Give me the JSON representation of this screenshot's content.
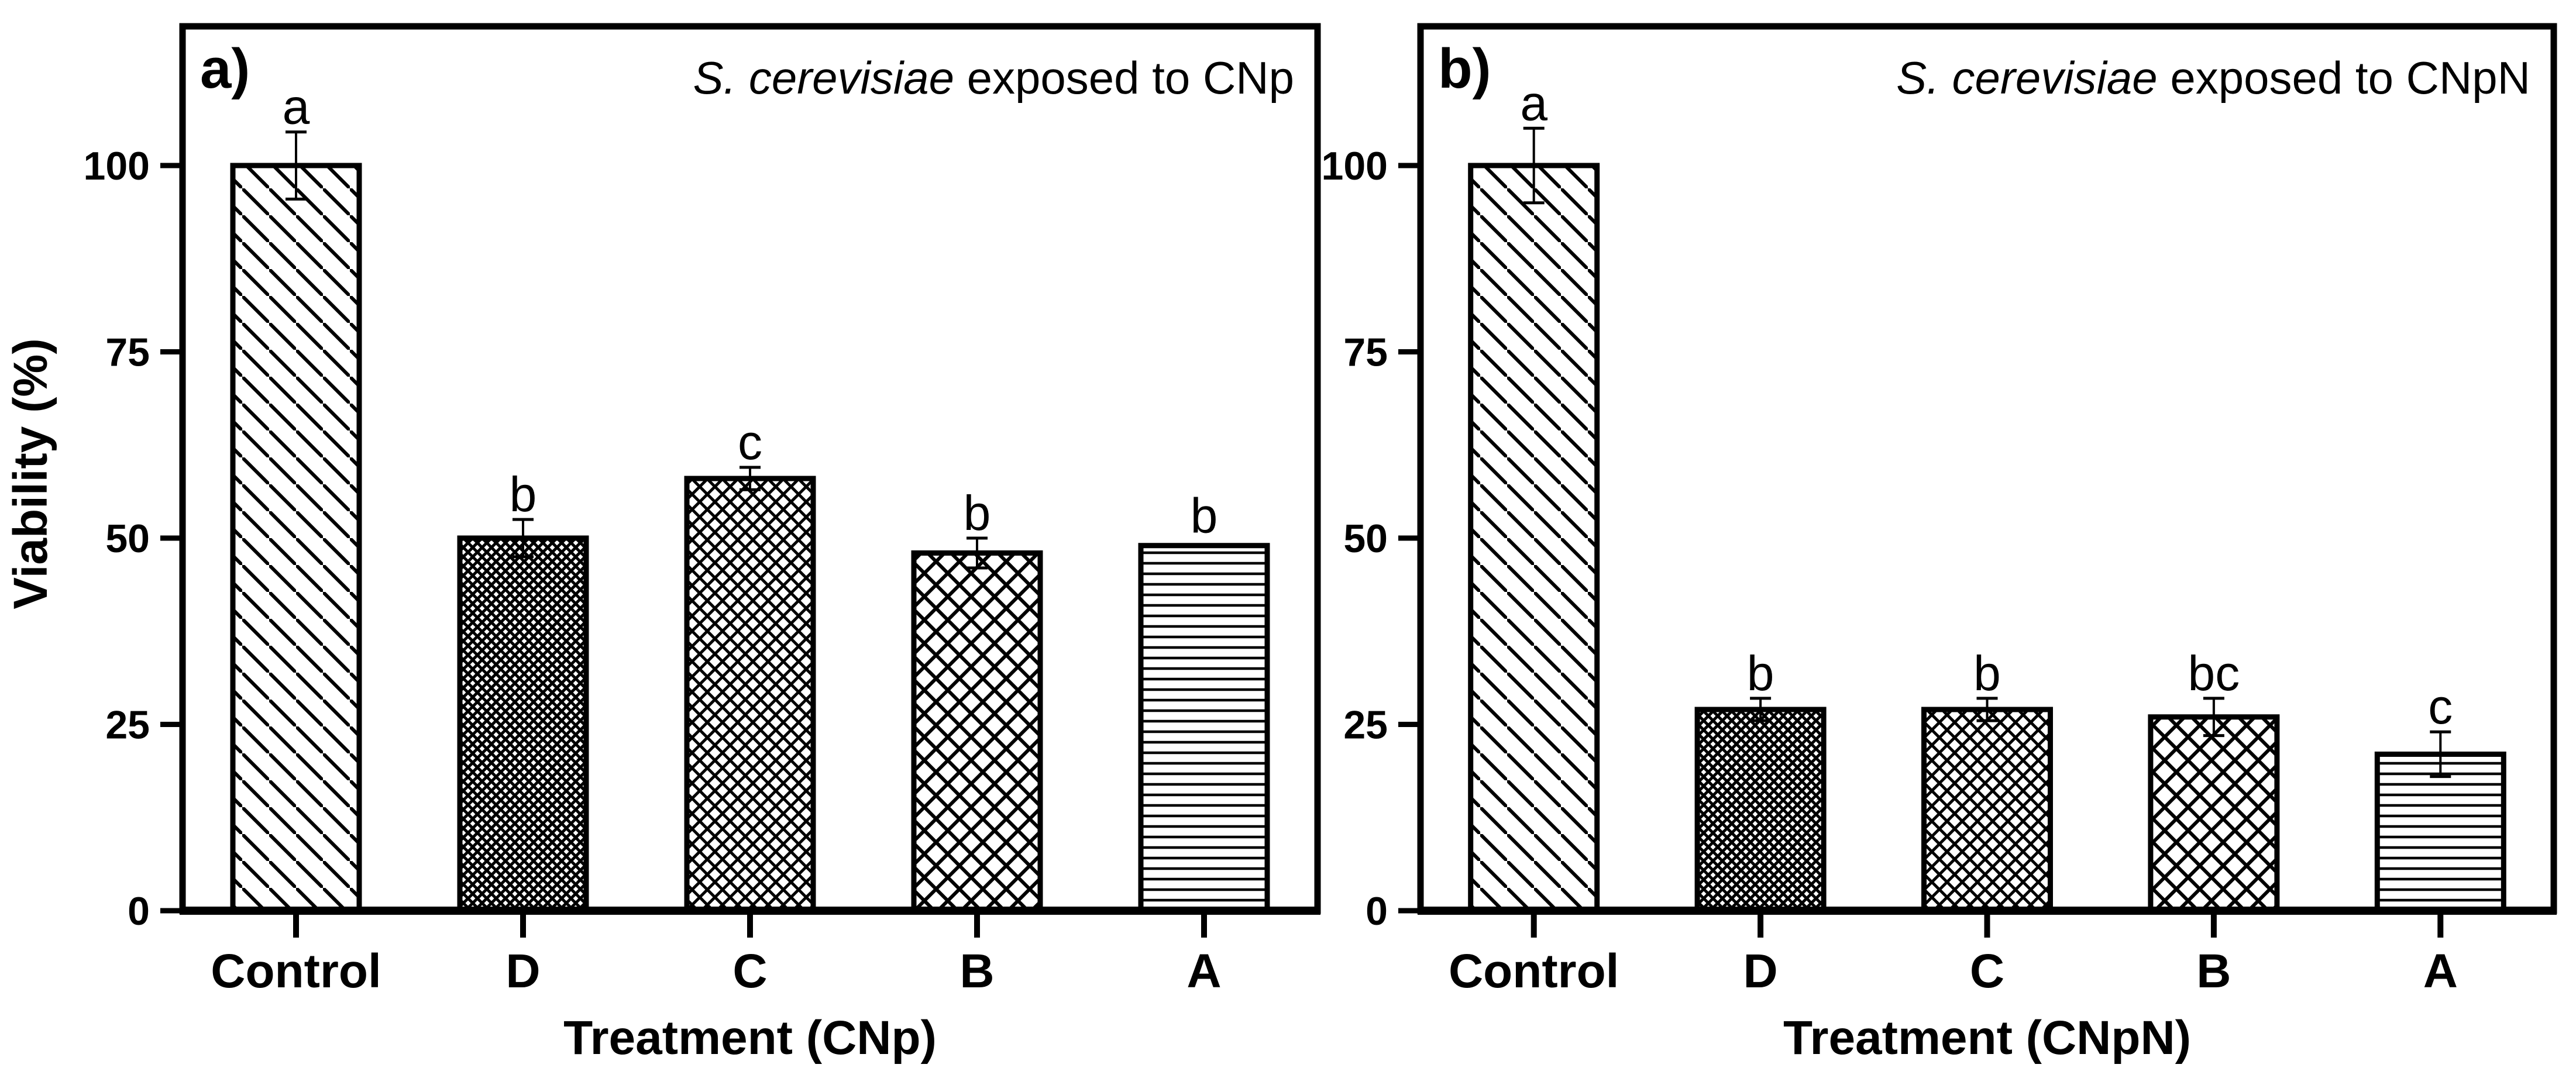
{
  "figure": {
    "background_color": "#ffffff",
    "foreground_color": "#000000"
  },
  "chart_data": [
    {
      "type": "bar",
      "panel_label": "a)",
      "title_species": "S. cerevisiae",
      "title_rest": " exposed to CNp",
      "title": "S. cerevisiae exposed to CNp",
      "xlabel": "Treatment (CNp)",
      "ylabel": "Viability (%)",
      "categories": [
        "Control",
        "D",
        "C",
        "B",
        "A"
      ],
      "values": [
        100,
        50,
        58,
        48,
        49
      ],
      "errors": [
        4.5,
        2.5,
        1.5,
        2,
        0
      ],
      "sig_letters": [
        "a",
        "b",
        "c",
        "b",
        "b"
      ],
      "bar_patterns": [
        "diagonal",
        "crosshatch-fine",
        "crosshatch-medium",
        "crosshatch-coarse",
        "horizontal"
      ],
      "bar_fill": "#ffffff",
      "bar_stroke": "#000000",
      "yticks": [
        0,
        25,
        50,
        75,
        100
      ],
      "ylim": [
        0,
        118.7
      ],
      "grid": false,
      "legend": null
    },
    {
      "type": "bar",
      "panel_label": "b)",
      "title_species": "S. cerevisiae",
      "title_rest": " exposed to CNpN",
      "title": "S. cerevisiae exposed to CNpN",
      "xlabel": "Treatment (CNpN)",
      "ylabel": "",
      "categories": [
        "Control",
        "D",
        "C",
        "B",
        "A"
      ],
      "values": [
        100,
        27,
        27,
        26,
        21
      ],
      "errors": [
        5,
        1.5,
        1.5,
        2.5,
        3
      ],
      "sig_letters": [
        "a",
        "b",
        "b",
        "bc",
        "c"
      ],
      "bar_patterns": [
        "diagonal",
        "crosshatch-fine",
        "crosshatch-medium",
        "crosshatch-coarse",
        "horizontal"
      ],
      "bar_fill": "#ffffff",
      "bar_stroke": "#000000",
      "yticks": [
        0,
        25,
        50,
        75,
        100
      ],
      "ylim": [
        0,
        118.7
      ],
      "grid": false,
      "legend": null
    }
  ]
}
